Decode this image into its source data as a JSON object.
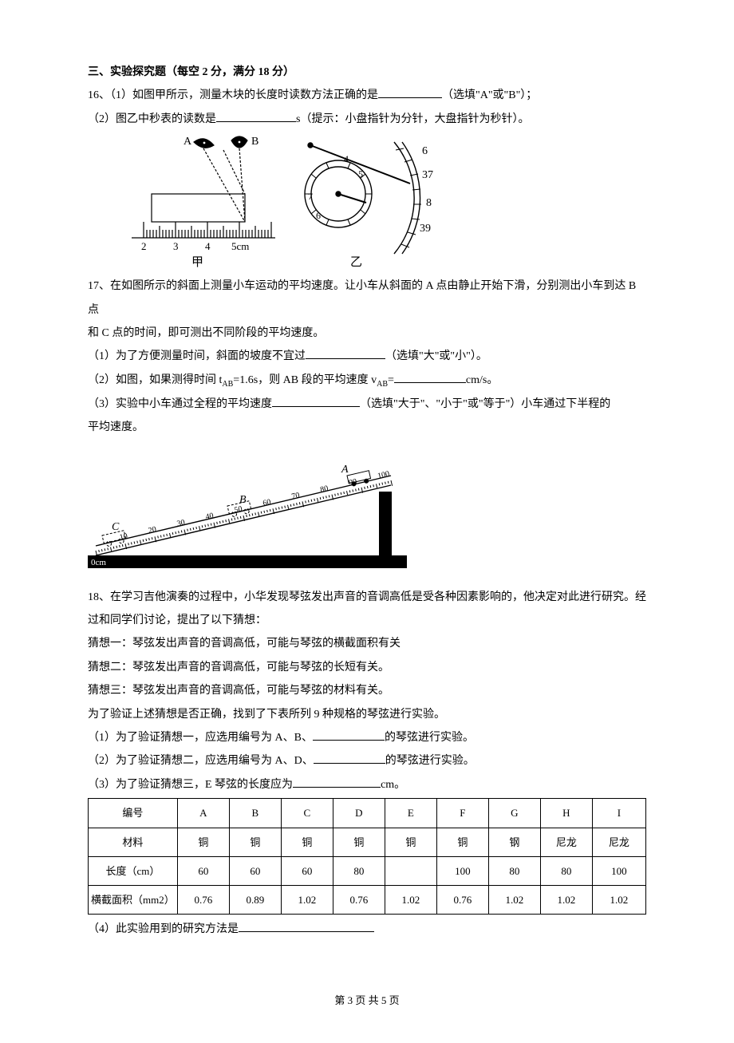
{
  "section_title": "三、实验探究题（每空 2 分，满分 18 分）",
  "q16": {
    "line1_a": "16、（1）如图甲所示，测量木块的长度时读数方法正确的是",
    "line1_b": "（选填\"A\"或\"B\"）；",
    "line2_a": "（2）图乙中秒表的读数是",
    "line2_b": "s（提示：小盘指针为分针，大盘指针为秒针）。",
    "fig": {
      "ruler": {
        "label_a": "A",
        "label_b": "B",
        "ticks": [
          "2",
          "3",
          "4",
          "5cm"
        ],
        "caption": "甲",
        "block_fill": "#ffffff",
        "stroke": "#000000"
      },
      "stopwatch": {
        "small_dial_nums": [
          "4",
          "5",
          "6",
          "7"
        ],
        "big_dial_nums": [
          "6",
          "37",
          "8",
          "39"
        ],
        "caption": "乙",
        "stroke": "#000000"
      }
    }
  },
  "q17": {
    "intro1": "17、在如图所示的斜面上测量小车运动的平均速度。让小车从斜面的 A 点由静止开始下滑，分别测出小车到达 B 点",
    "intro2": "和 C 点的时间，即可测出不同阶段的平均速度。",
    "p1_a": "（1）为了方便测量时间，斜面的坡度不宜过",
    "p1_b": "（选填\"大\"或\"小\"）。",
    "p2_a": "（2）如图，如果测得时间 t",
    "p2_sub1": "AB",
    "p2_mid": "=1.6s，则 AB 段的平均速度 v",
    "p2_sub2": "AB",
    "p2_eq": "=",
    "p2_b": "cm/s。",
    "p3_a": "（3）实验中小车通过全程的平均速度",
    "p3_b": "（选填\"大于\"、\"小于\"或\"等于\"）小车通过下半程的",
    "p3_c": "平均速度。",
    "fig": {
      "labels": {
        "a": "A",
        "b": "B",
        "c": "C",
        "zero": "0cm"
      },
      "ticks": [
        "10",
        "20",
        "30",
        "40",
        "50",
        "60",
        "70",
        "80",
        "90",
        "100"
      ],
      "stroke": "#000000",
      "fill_black": "#000000"
    }
  },
  "q18": {
    "intro1": "18、在学习吉他演奏的过程中，小华发现琴弦发出声音的音调高低是受各种因素影响的，他决定对此进行研究。经",
    "intro2": "过和同学们讨论，提出了以下猜想：",
    "g1": "猜想一：琴弦发出声音的音调高低，可能与琴弦的横截面积有关",
    "g2": "猜想二：琴弦发出声音的音调高低，可能与琴弦的长短有关。",
    "g3": "猜想三：琴弦发出声音的音调高低，可能与琴弦的材料有关。",
    "intro3": "为了验证上述猜想是否正确，找到了下表所列 9 种规格的琴弦进行实验。",
    "p1_a": "（1）为了验证猜想一，应选用编号为 A、B、",
    "p1_b": "的琴弦进行实验。",
    "p2_a": "（2）为了验证猜想二，应选用编号为 A、D、",
    "p2_b": "的琴弦进行实验。",
    "p3_a": "（3）为了验证猜想三，E 琴弦的长度应为",
    "p3_b": "cm。",
    "p4_a": "（4）此实验用到的研究方法是",
    "table": {
      "headers": [
        "编号",
        "A",
        "B",
        "C",
        "D",
        "E",
        "F",
        "G",
        "H",
        "I"
      ],
      "row_material": [
        "材料",
        "铜",
        "铜",
        "铜",
        "铜",
        "铜",
        "铜",
        "钢",
        "尼龙",
        "尼龙"
      ],
      "row_length": [
        "长度（cm）",
        "60",
        "60",
        "60",
        "80",
        "",
        "100",
        "80",
        "80",
        "100"
      ],
      "row_area": [
        "横截面积（mm2）",
        "0.76",
        "0.89",
        "1.02",
        "0.76",
        "1.02",
        "0.76",
        "1.02",
        "1.02",
        "1.02"
      ],
      "col_widths_pct": [
        16,
        9.3,
        9.3,
        9.3,
        9.3,
        9.3,
        9.3,
        9.3,
        9.3,
        9.6
      ],
      "border_color": "#000000"
    }
  },
  "footer": "第 3 页 共 5 页"
}
